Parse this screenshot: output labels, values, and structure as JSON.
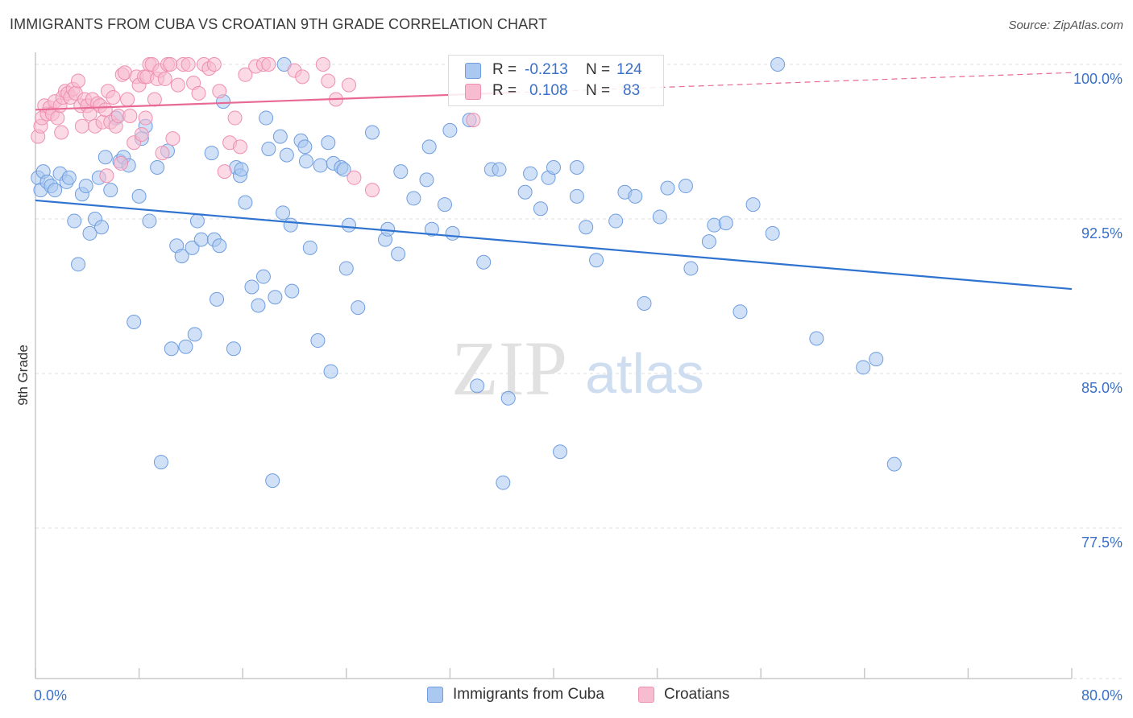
{
  "title": "IMMIGRANTS FROM CUBA VS CROATIAN 9TH GRADE CORRELATION CHART",
  "source": "Source: ZipAtlas.com",
  "watermark": {
    "zip": "ZIP",
    "atlas": "atlas"
  },
  "legend": {
    "r_label": "R =",
    "n_label": "N =",
    "rows": [
      {
        "name": "Immigrants from Cuba",
        "r": "-0.213",
        "n": "124",
        "fill": "#aac8f0",
        "stroke": "#6f9de0"
      },
      {
        "name": "Croatians",
        "r": "0.108",
        "n": "83",
        "fill": "#f8bcd0",
        "stroke": "#ee8fb0"
      }
    ]
  },
  "chart_data": {
    "type": "scatter",
    "title": "IMMIGRANTS FROM CUBA VS CROATIAN 9TH GRADE CORRELATION CHART",
    "xlabel": "",
    "ylabel": "9th Grade",
    "xlim": [
      0,
      80
    ],
    "ylim": [
      70,
      101
    ],
    "x_tick_labels": [
      "0.0%",
      "80.0%"
    ],
    "y_ticks": [
      77.5,
      85.0,
      92.5,
      100.0
    ],
    "y_tick_labels": [
      "77.5%",
      "85.0%",
      "92.5%",
      "100.0%"
    ],
    "grid": true,
    "legend_position": "top-center",
    "series": [
      {
        "name": "Immigrants from Cuba",
        "color": "#6f9de0",
        "fill": "#aac8f0",
        "trend_color": "#2f73d0",
        "trend": {
          "x": [
            0,
            80
          ],
          "y": [
            93.4,
            89.1
          ]
        },
        "points": [
          [
            0.2,
            94.5
          ],
          [
            0.4,
            93.9
          ],
          [
            0.6,
            94.8
          ],
          [
            0.9,
            94.3
          ],
          [
            1.2,
            94.1
          ],
          [
            1.5,
            93.9
          ],
          [
            1.9,
            94.7
          ],
          [
            2.4,
            94.3
          ],
          [
            2.6,
            94.5
          ],
          [
            3.0,
            92.4
          ],
          [
            3.3,
            90.3
          ],
          [
            3.6,
            93.7
          ],
          [
            3.9,
            94.1
          ],
          [
            4.2,
            91.8
          ],
          [
            4.6,
            92.5
          ],
          [
            4.9,
            94.5
          ],
          [
            5.1,
            92.1
          ],
          [
            5.4,
            95.5
          ],
          [
            5.8,
            93.9
          ],
          [
            6.2,
            97.4
          ],
          [
            6.5,
            95.3
          ],
          [
            6.8,
            95.5
          ],
          [
            7.2,
            95.1
          ],
          [
            7.6,
            87.5
          ],
          [
            8.0,
            93.6
          ],
          [
            8.2,
            96.4
          ],
          [
            8.5,
            97.0
          ],
          [
            8.8,
            92.4
          ],
          [
            9.4,
            95.0
          ],
          [
            9.7,
            80.7
          ],
          [
            10.2,
            95.8
          ],
          [
            10.5,
            86.2
          ],
          [
            10.9,
            91.2
          ],
          [
            11.3,
            90.7
          ],
          [
            11.6,
            86.3
          ],
          [
            12.1,
            91.1
          ],
          [
            12.3,
            86.9
          ],
          [
            12.5,
            92.4
          ],
          [
            12.8,
            91.5
          ],
          [
            13.6,
            95.7
          ],
          [
            13.8,
            91.5
          ],
          [
            14.2,
            91.2
          ],
          [
            14.0,
            88.6
          ],
          [
            14.5,
            98.2
          ],
          [
            15.3,
            86.2
          ],
          [
            15.5,
            95.0
          ],
          [
            15.8,
            94.6
          ],
          [
            15.9,
            94.9
          ],
          [
            16.2,
            93.3
          ],
          [
            16.7,
            89.2
          ],
          [
            17.2,
            88.3
          ],
          [
            17.6,
            89.7
          ],
          [
            17.8,
            97.4
          ],
          [
            18.0,
            95.9
          ],
          [
            18.3,
            79.8
          ],
          [
            18.5,
            88.7
          ],
          [
            18.9,
            96.5
          ],
          [
            19.1,
            92.8
          ],
          [
            19.4,
            95.6
          ],
          [
            19.7,
            92.2
          ],
          [
            19.8,
            89.0
          ],
          [
            20.5,
            96.3
          ],
          [
            20.8,
            96.0
          ],
          [
            20.9,
            95.3
          ],
          [
            21.2,
            91.1
          ],
          [
            21.8,
            86.6
          ],
          [
            22.0,
            95.1
          ],
          [
            22.6,
            96.2
          ],
          [
            22.8,
            85.1
          ],
          [
            23.0,
            95.2
          ],
          [
            23.6,
            95.0
          ],
          [
            23.8,
            94.9
          ],
          [
            24.0,
            90.1
          ],
          [
            24.2,
            92.2
          ],
          [
            24.9,
            88.2
          ],
          [
            26.0,
            96.7
          ],
          [
            27.0,
            91.5
          ],
          [
            27.2,
            92.0
          ],
          [
            28.0,
            90.8
          ],
          [
            28.2,
            94.8
          ],
          [
            29.2,
            93.5
          ],
          [
            30.2,
            94.4
          ],
          [
            30.4,
            96.0
          ],
          [
            30.6,
            92.0
          ],
          [
            31.6,
            93.2
          ],
          [
            32.2,
            91.8
          ],
          [
            33.5,
            97.3
          ],
          [
            34.1,
            84.4
          ],
          [
            34.6,
            90.4
          ],
          [
            35.2,
            94.9
          ],
          [
            35.8,
            94.9
          ],
          [
            36.1,
            79.7
          ],
          [
            36.5,
            83.8
          ],
          [
            37.8,
            93.8
          ],
          [
            38.2,
            94.7
          ],
          [
            39.0,
            93.0
          ],
          [
            39.6,
            94.5
          ],
          [
            40.0,
            95.0
          ],
          [
            40.5,
            81.2
          ],
          [
            41.8,
            93.6
          ],
          [
            42.5,
            92.1
          ],
          [
            43.3,
            90.5
          ],
          [
            44.8,
            92.4
          ],
          [
            45.5,
            93.8
          ],
          [
            46.3,
            93.6
          ],
          [
            47.0,
            88.4
          ],
          [
            48.2,
            92.6
          ],
          [
            48.8,
            94.0
          ],
          [
            50.2,
            94.1
          ],
          [
            50.6,
            90.1
          ],
          [
            52.0,
            91.4
          ],
          [
            52.4,
            92.2
          ],
          [
            53.3,
            92.3
          ],
          [
            54.4,
            88.0
          ],
          [
            55.4,
            93.2
          ],
          [
            56.9,
            91.8
          ],
          [
            57.3,
            100.0
          ],
          [
            60.3,
            86.7
          ],
          [
            63.9,
            85.3
          ],
          [
            64.9,
            85.7
          ],
          [
            66.3,
            80.6
          ],
          [
            32.0,
            96.8
          ],
          [
            19.2,
            100.0
          ],
          [
            41.8,
            95.0
          ]
        ]
      },
      {
        "name": "Croatians",
        "color": "#ee8fb0",
        "fill": "#f8bcd0",
        "trend_color": "#e86996",
        "trend": {
          "x": [
            0,
            80
          ],
          "y": [
            97.8,
            99.6
          ]
        },
        "trend_solid_until_x": 37,
        "points": [
          [
            0.2,
            96.5
          ],
          [
            0.4,
            97.0
          ],
          [
            0.5,
            97.4
          ],
          [
            0.7,
            98.0
          ],
          [
            0.9,
            97.6
          ],
          [
            1.1,
            97.9
          ],
          [
            1.3,
            97.6
          ],
          [
            1.5,
            98.2
          ],
          [
            1.7,
            97.4
          ],
          [
            1.9,
            98.0
          ],
          [
            2.1,
            98.4
          ],
          [
            2.3,
            98.7
          ],
          [
            2.5,
            98.6
          ],
          [
            2.7,
            98.4
          ],
          [
            2.9,
            98.8
          ],
          [
            3.1,
            98.6
          ],
          [
            3.3,
            99.2
          ],
          [
            3.5,
            98.0
          ],
          [
            3.6,
            97.0
          ],
          [
            3.8,
            98.3
          ],
          [
            4.0,
            98.0
          ],
          [
            4.2,
            97.6
          ],
          [
            4.4,
            98.3
          ],
          [
            4.6,
            97.0
          ],
          [
            4.8,
            98.1
          ],
          [
            5.0,
            98.0
          ],
          [
            5.2,
            97.2
          ],
          [
            5.4,
            97.8
          ],
          [
            5.6,
            98.7
          ],
          [
            5.8,
            97.2
          ],
          [
            6.0,
            98.4
          ],
          [
            6.2,
            97.0
          ],
          [
            6.4,
            97.5
          ],
          [
            6.7,
            99.5
          ],
          [
            6.9,
            99.6
          ],
          [
            7.1,
            98.3
          ],
          [
            7.3,
            97.5
          ],
          [
            7.6,
            96.2
          ],
          [
            7.8,
            99.4
          ],
          [
            8.0,
            99.0
          ],
          [
            8.2,
            96.6
          ],
          [
            8.4,
            99.4
          ],
          [
            8.6,
            99.4
          ],
          [
            8.8,
            100.0
          ],
          [
            9.0,
            100.0
          ],
          [
            9.2,
            98.3
          ],
          [
            9.4,
            99.3
          ],
          [
            9.6,
            99.7
          ],
          [
            9.8,
            95.7
          ],
          [
            10.0,
            99.3
          ],
          [
            10.2,
            100.0
          ],
          [
            10.4,
            100.0
          ],
          [
            10.6,
            96.4
          ],
          [
            11.0,
            99.0
          ],
          [
            11.4,
            100.0
          ],
          [
            11.8,
            100.0
          ],
          [
            12.2,
            99.1
          ],
          [
            12.6,
            98.6
          ],
          [
            13.0,
            100.0
          ],
          [
            13.4,
            99.8
          ],
          [
            13.8,
            100.0
          ],
          [
            14.2,
            98.7
          ],
          [
            14.6,
            94.8
          ],
          [
            15.0,
            96.2
          ],
          [
            15.4,
            97.4
          ],
          [
            15.8,
            96.0
          ],
          [
            16.2,
            99.5
          ],
          [
            17.0,
            99.9
          ],
          [
            17.6,
            100.0
          ],
          [
            18.0,
            100.0
          ],
          [
            20.0,
            99.7
          ],
          [
            20.6,
            99.4
          ],
          [
            22.2,
            100.0
          ],
          [
            22.6,
            99.2
          ],
          [
            23.2,
            98.3
          ],
          [
            24.2,
            99.0
          ],
          [
            24.6,
            94.5
          ],
          [
            26.0,
            93.9
          ],
          [
            33.8,
            97.3
          ],
          [
            2.0,
            96.7
          ],
          [
            6.6,
            95.2
          ],
          [
            8.5,
            97.4
          ],
          [
            5.5,
            94.6
          ]
        ]
      }
    ]
  }
}
